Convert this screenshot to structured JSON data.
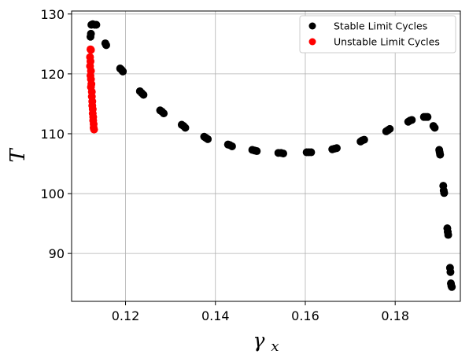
{
  "chart_data": {
    "type": "scatter",
    "xlabel": "γ",
    "xlabel_sub": "x",
    "ylabel": "T",
    "xlim": [
      0.108,
      0.1945
    ],
    "ylim": [
      82,
      130.5
    ],
    "xticks": [
      0.12,
      0.14,
      0.16,
      0.18
    ],
    "yticks": [
      90,
      100,
      110,
      120,
      130
    ],
    "x_tick_labels": [
      "0.12",
      "0.14",
      "0.16",
      "0.18"
    ],
    "y_tick_labels": [
      "90",
      "100",
      "110",
      "120",
      "130"
    ],
    "grid": true,
    "legend_position": "top-right",
    "series": [
      {
        "name": "Stable Limit Cycles",
        "color": "#000000",
        "points": [
          [
            0.1122,
            126.2
          ],
          [
            0.1123,
            126.7
          ],
          [
            0.1124,
            128.2
          ],
          [
            0.1127,
            128.3
          ],
          [
            0.1131,
            128.2
          ],
          [
            0.1135,
            128.2
          ],
          [
            0.1155,
            125.1
          ],
          [
            0.1157,
            124.8
          ],
          [
            0.1188,
            120.9
          ],
          [
            0.1191,
            120.7
          ],
          [
            0.1194,
            120.4
          ],
          [
            0.1232,
            117.1
          ],
          [
            0.1236,
            116.8
          ],
          [
            0.124,
            116.5
          ],
          [
            0.1277,
            113.9
          ],
          [
            0.1281,
            113.7
          ],
          [
            0.1285,
            113.4
          ],
          [
            0.1325,
            111.5
          ],
          [
            0.1329,
            111.3
          ],
          [
            0.1333,
            111.0
          ],
          [
            0.1375,
            109.5
          ],
          [
            0.1379,
            109.3
          ],
          [
            0.1383,
            109.1
          ],
          [
            0.1428,
            108.2
          ],
          [
            0.1432,
            108.1
          ],
          [
            0.1437,
            107.9
          ],
          [
            0.1482,
            107.3
          ],
          [
            0.1487,
            107.2
          ],
          [
            0.1492,
            107.1
          ],
          [
            0.154,
            106.8
          ],
          [
            0.1546,
            106.8
          ],
          [
            0.1551,
            106.7
          ],
          [
            0.1603,
            106.9
          ],
          [
            0.1608,
            106.9
          ],
          [
            0.1613,
            106.9
          ],
          [
            0.166,
            107.4
          ],
          [
            0.1665,
            107.5
          ],
          [
            0.167,
            107.6
          ],
          [
            0.1723,
            108.7
          ],
          [
            0.1727,
            108.9
          ],
          [
            0.1731,
            109.0
          ],
          [
            0.178,
            110.4
          ],
          [
            0.1784,
            110.6
          ],
          [
            0.1788,
            110.8
          ],
          [
            0.1829,
            112.0
          ],
          [
            0.1833,
            112.2
          ],
          [
            0.1837,
            112.3
          ],
          [
            0.1864,
            112.8
          ],
          [
            0.1868,
            112.8
          ],
          [
            0.1872,
            112.8
          ],
          [
            0.1885,
            111.3
          ],
          [
            0.1888,
            111.0
          ],
          [
            0.1898,
            107.3
          ],
          [
            0.1899,
            106.9
          ],
          [
            0.19,
            106.5
          ],
          [
            0.1907,
            101.3
          ],
          [
            0.1908,
            100.5
          ],
          [
            0.1909,
            100.1
          ],
          [
            0.1916,
            94.2
          ],
          [
            0.1917,
            93.6
          ],
          [
            0.1918,
            93.1
          ],
          [
            0.1922,
            87.6
          ],
          [
            0.1923,
            86.9
          ],
          [
            0.1924,
            85.0
          ],
          [
            0.1925,
            84.6
          ],
          [
            0.1926,
            84.4
          ]
        ]
      },
      {
        "name": "Unstable Limit Cycles",
        "color": "#ff0000",
        "points": [
          [
            0.1122,
            124.1
          ],
          [
            0.1123,
            124.0
          ],
          [
            0.1121,
            122.8
          ],
          [
            0.1122,
            122.1
          ],
          [
            0.1121,
            121.3
          ],
          [
            0.1123,
            120.5
          ],
          [
            0.1122,
            119.7
          ],
          [
            0.1123,
            119.1
          ],
          [
            0.1124,
            118.3
          ],
          [
            0.1123,
            117.8
          ],
          [
            0.1125,
            117.0
          ],
          [
            0.1125,
            116.2
          ],
          [
            0.1126,
            115.4
          ],
          [
            0.1126,
            114.7
          ],
          [
            0.1127,
            114.1
          ],
          [
            0.1127,
            113.4
          ],
          [
            0.1128,
            112.8
          ],
          [
            0.1128,
            112.2
          ],
          [
            0.1129,
            111.6
          ],
          [
            0.1129,
            111.0
          ],
          [
            0.113,
            110.7
          ]
        ]
      }
    ]
  }
}
